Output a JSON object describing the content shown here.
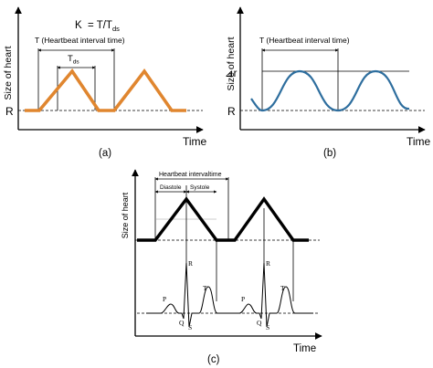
{
  "panel_a": {
    "formula_k": "K",
    "formula_eq": "= T/T",
    "formula_sub": "ds",
    "interval_label": "T (Heartbeat interval time)",
    "tds_label": "T",
    "tds_sub": "ds",
    "y_axis": "Size of heart",
    "r_label": "R",
    "x_axis": "Time",
    "caption": "(a)",
    "wave_color": "#E0862F"
  },
  "panel_b": {
    "interval_label": "T (Heartbeat interval time)",
    "y_axis": "Size of heart",
    "delta_r": "⊿r",
    "r_label": "R",
    "x_axis": "Time",
    "caption": "(b)",
    "wave_color": "#2E6E9E"
  },
  "panel_c": {
    "interval_label": "Heartbeat intervaltime",
    "diastole": "Diastole",
    "systole": "Systole",
    "y_axis": "Size of heart",
    "p": "P",
    "r": "R",
    "q": "Q",
    "s": "S",
    "t": "T",
    "p2": "P",
    "r2": "R",
    "q2": "Q",
    "s2": "S",
    "t2": "T",
    "x_axis": "Time",
    "caption": "(c)"
  }
}
